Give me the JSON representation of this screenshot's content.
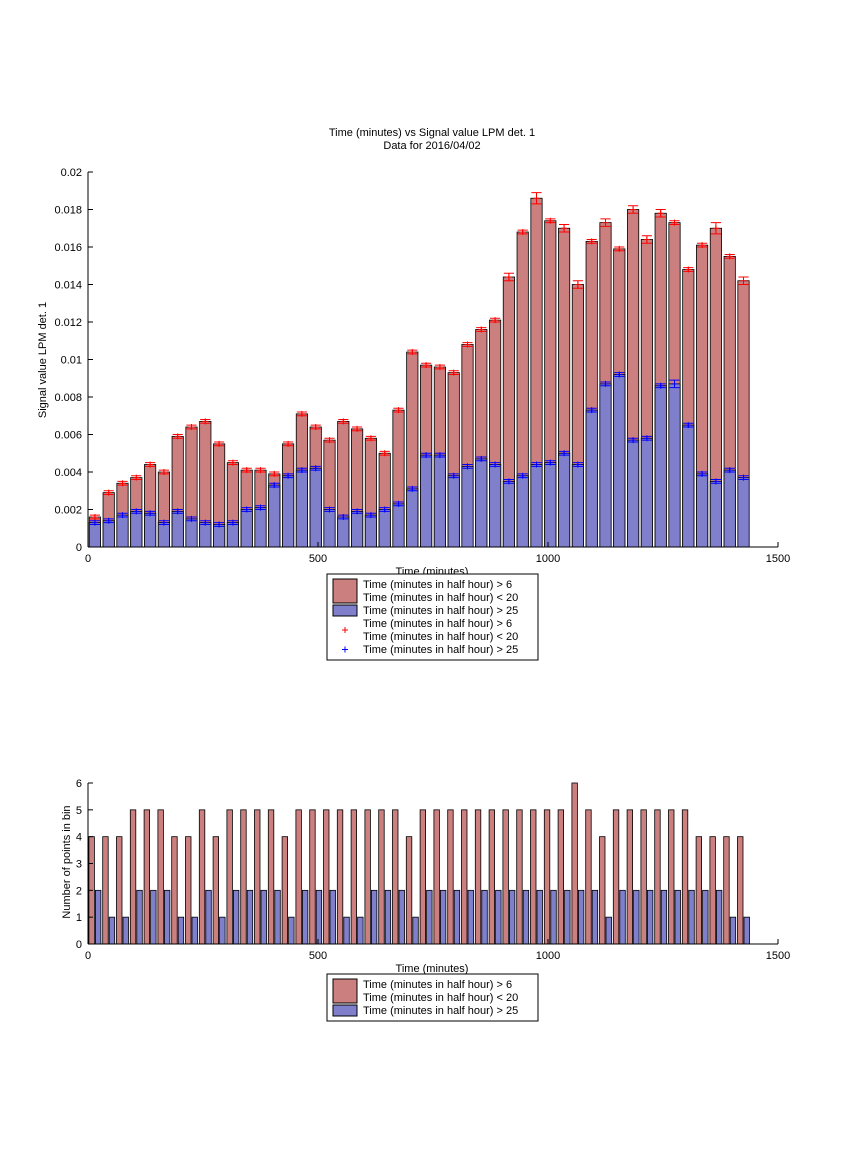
{
  "colors": {
    "red_fill": "#cc7f7f",
    "blue_fill": "#7f7fcc",
    "red_marker": "#ff0000",
    "blue_marker": "#0000ff",
    "axis": "#000000"
  },
  "chart_data": [
    {
      "type": "bar",
      "title": "Time (minutes) vs Signal value LPM det. 1",
      "subtitle": "Data for 2016/04/02",
      "xlabel": "Time (minutes)",
      "ylabel": "Signal value LPM det. 1",
      "xlim": [
        0,
        1500
      ],
      "ylim": [
        0,
        0.02
      ],
      "xticks": [
        0,
        500,
        1000,
        1500
      ],
      "xtick_labels": [
        "0",
        "500",
        "1000",
        "1500"
      ],
      "yticks": [
        0,
        0.002,
        0.004,
        0.006,
        0.008,
        0.01,
        0.012,
        0.014,
        0.016,
        0.018,
        0.02
      ],
      "ytick_labels": [
        "0",
        "0.002",
        "0.004",
        "0.006",
        "0.008",
        "0.01",
        "0.012",
        "0.014",
        "0.016",
        "0.018",
        "0.02"
      ],
      "legend_position": "bottom-center",
      "legend": [
        {
          "kind": "patch",
          "color": "red",
          "lines": [
            "Time (minutes in half hour) > 6",
            "Time (minutes in half hour) < 20"
          ]
        },
        {
          "kind": "patch",
          "color": "blue",
          "lines": [
            "Time (minutes in half hour) > 25"
          ]
        },
        {
          "kind": "marker",
          "color": "red",
          "lines": [
            "Time (minutes in half hour) > 6",
            "Time (minutes in half hour) < 20"
          ]
        },
        {
          "kind": "marker",
          "color": "blue",
          "lines": [
            "Time (minutes in half hour) > 25"
          ]
        }
      ],
      "x": [
        15,
        45,
        75,
        105,
        135,
        165,
        195,
        225,
        255,
        285,
        315,
        345,
        375,
        405,
        435,
        465,
        495,
        525,
        555,
        585,
        615,
        645,
        675,
        705,
        735,
        765,
        795,
        825,
        855,
        885,
        915,
        945,
        975,
        1005,
        1035,
        1065,
        1095,
        1125,
        1155,
        1185,
        1215,
        1245,
        1275,
        1305,
        1335,
        1365,
        1395,
        1425
      ],
      "series": [
        {
          "values": [
            0.0016,
            0.0029,
            0.0034,
            0.0037,
            0.0044,
            0.004,
            0.0059,
            0.0064,
            0.0067,
            0.0055,
            0.0045,
            0.0041,
            0.0041,
            0.0039,
            0.0055,
            0.0071,
            0.0064,
            0.0057,
            0.0067,
            0.0063,
            0.0058,
            0.005,
            0.0073,
            0.0104,
            0.0097,
            0.0096,
            0.0093,
            0.0108,
            0.0116,
            0.0121,
            0.0144,
            0.0168,
            0.0186,
            0.0174,
            0.017,
            0.014,
            0.0163,
            0.0173,
            0.0159,
            0.018,
            0.0164,
            0.0178,
            0.0173,
            0.0148,
            0.0161,
            0.017,
            0.0155,
            0.0142
          ],
          "errors": [
            0.0001,
            0.0001,
            0.0001,
            0.0001,
            0.0001,
            0.0001,
            0.0001,
            0.0001,
            0.0001,
            0.0001,
            0.0001,
            0.0001,
            0.0001,
            0.0001,
            0.0001,
            0.0001,
            0.0001,
            0.0001,
            0.0001,
            0.0001,
            0.0001,
            0.0001,
            0.0001,
            0.0001,
            0.0001,
            0.0001,
            0.0001,
            0.0001,
            0.0001,
            0.0001,
            0.0002,
            0.0001,
            0.0003,
            0.0001,
            0.0002,
            0.0002,
            0.0001,
            0.0002,
            0.0001,
            0.0002,
            0.0002,
            0.0002,
            0.0001,
            0.0001,
            0.0001,
            0.0003,
            0.0001,
            0.0002
          ]
        },
        {
          "values": [
            0.0013,
            0.0014,
            0.0017,
            0.0019,
            0.0018,
            0.0013,
            0.0019,
            0.0015,
            0.0013,
            0.0012,
            0.0013,
            0.002,
            0.0021,
            0.0033,
            0.0038,
            0.0041,
            0.0042,
            0.002,
            0.0016,
            0.0019,
            0.0017,
            0.002,
            0.0023,
            0.0031,
            0.0049,
            0.0049,
            0.0038,
            0.0043,
            0.0047,
            0.0044,
            0.0035,
            0.0038,
            0.0044,
            0.0045,
            0.005,
            0.0044,
            0.0073,
            0.0087,
            0.0092,
            0.0057,
            0.0058,
            0.0086,
            0.0087,
            0.0065,
            0.0039,
            0.0035,
            0.0041,
            0.0037
          ],
          "errors": [
            0.0001,
            0.0001,
            0.0001,
            0.0001,
            0.0001,
            0.0001,
            0.0001,
            0.0001,
            0.0001,
            0.0001,
            0.0001,
            0.0001,
            0.0001,
            0.0001,
            0.0001,
            0.0001,
            0.0001,
            0.0001,
            0.0001,
            0.0001,
            0.0001,
            0.0001,
            0.0001,
            0.0001,
            0.0001,
            0.0001,
            0.0001,
            0.0001,
            0.0001,
            0.0001,
            0.0001,
            0.0001,
            0.0001,
            0.0001,
            0.0001,
            0.0001,
            0.0001,
            0.0001,
            0.0001,
            0.0001,
            0.0001,
            0.0001,
            0.0002,
            0.0001,
            0.0001,
            0.0001,
            0.0001,
            0.0001
          ]
        }
      ]
    },
    {
      "type": "bar",
      "title": "",
      "xlabel": "Time (minutes)",
      "ylabel": "Number of points in bin",
      "xlim": [
        0,
        1500
      ],
      "ylim": [
        0,
        6
      ],
      "xticks": [
        0,
        500,
        1000,
        1500
      ],
      "xtick_labels": [
        "0",
        "500",
        "1000",
        "1500"
      ],
      "yticks": [
        0,
        1,
        2,
        3,
        4,
        5,
        6
      ],
      "ytick_labels": [
        "0",
        "1",
        "2",
        "3",
        "4",
        "5",
        "6"
      ],
      "legend_position": "bottom-center",
      "legend": [
        {
          "kind": "patch",
          "color": "red",
          "lines": [
            "Time (minutes in half hour) > 6",
            "Time (minutes in half hour) < 20"
          ]
        },
        {
          "kind": "patch",
          "color": "blue",
          "lines": [
            "Time (minutes in half hour) > 25"
          ]
        }
      ],
      "x": [
        15,
        45,
        75,
        105,
        135,
        165,
        195,
        225,
        255,
        285,
        315,
        345,
        375,
        405,
        435,
        465,
        495,
        525,
        555,
        585,
        615,
        645,
        675,
        705,
        735,
        765,
        795,
        825,
        855,
        885,
        915,
        945,
        975,
        1005,
        1035,
        1065,
        1095,
        1125,
        1155,
        1185,
        1215,
        1245,
        1275,
        1305,
        1335,
        1365,
        1395,
        1425
      ],
      "series": [
        {
          "values": [
            4,
            4,
            4,
            5,
            5,
            5,
            4,
            4,
            5,
            4,
            5,
            5,
            5,
            5,
            4,
            5,
            5,
            5,
            5,
            5,
            5,
            5,
            5,
            4,
            5,
            5,
            5,
            5,
            5,
            5,
            5,
            5,
            5,
            5,
            5,
            6,
            5,
            4,
            5,
            5,
            5,
            5,
            5,
            5,
            4,
            4,
            4,
            4
          ]
        },
        {
          "values": [
            2,
            1,
            1,
            2,
            2,
            2,
            1,
            1,
            2,
            1,
            2,
            2,
            2,
            2,
            1,
            2,
            2,
            2,
            1,
            1,
            2,
            2,
            2,
            1,
            2,
            2,
            2,
            2,
            2,
            2,
            2,
            2,
            2,
            2,
            2,
            2,
            2,
            1,
            2,
            2,
            2,
            2,
            2,
            2,
            2,
            2,
            1,
            1
          ]
        }
      ]
    }
  ]
}
